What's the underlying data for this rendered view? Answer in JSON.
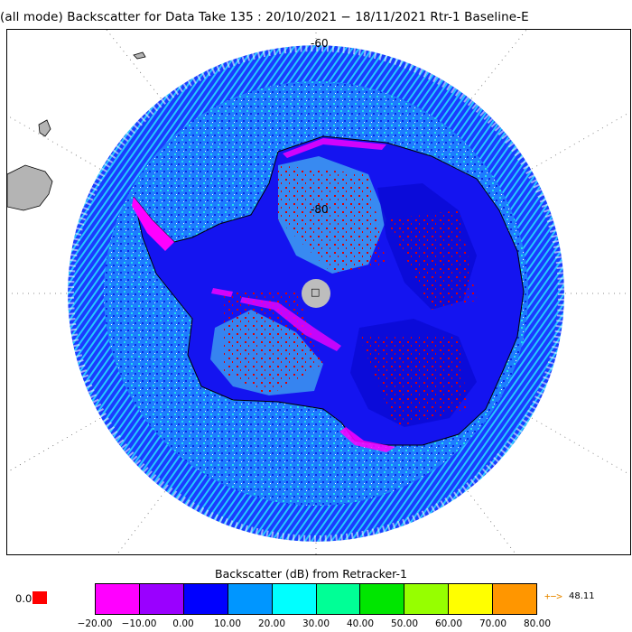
{
  "title": "(all mode) Backscatter for Data Take 135 : 20/10/2021 − 18/11/2021 Rtr-1 Baseline-E",
  "map": {
    "lat_labels": [
      "-60",
      "-80"
    ],
    "pole_marker": "□"
  },
  "colorbar": {
    "title": "Backscatter (dB) from Retracker-1",
    "colors": [
      "#ff00ff",
      "#9a00ff",
      "#0000ff",
      "#0096ff",
      "#00ffff",
      "#00ff96",
      "#00e600",
      "#96ff00",
      "#ffff00",
      "#ff9600"
    ],
    "ticks": [
      "−20.00",
      "−10.00",
      "0.00",
      "10.00",
      "20.00",
      "30.00",
      "40.00",
      "50.00",
      "60.00",
      "70.00",
      "80.00"
    ],
    "low_value": "0.0",
    "low_color": "#ff0000",
    "high_arrow": "+−>",
    "high_value": "48.11"
  }
}
